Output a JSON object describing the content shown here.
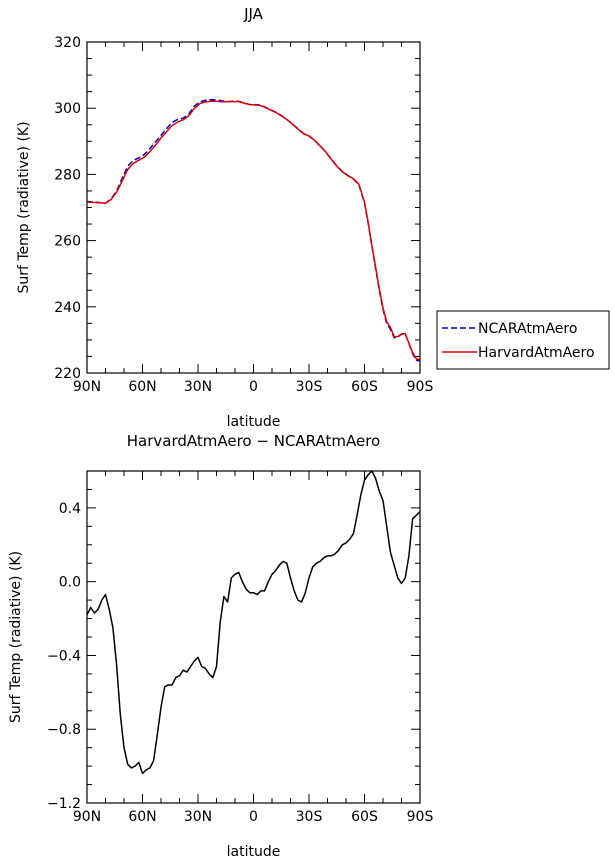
{
  "legend": {
    "items": [
      {
        "label": "NCARAtmAero",
        "color": "#0000cc",
        "style": "dashed"
      },
      {
        "label": "HarvardAtmAero",
        "color": "#dd0000",
        "style": "solid"
      }
    ]
  },
  "chart_data": [
    {
      "type": "line",
      "title": "JJA",
      "xlabel": "latitude",
      "ylabel": "Surf Temp (radiative) (K)",
      "xlim": [
        90,
        -90
      ],
      "ylim": [
        220,
        320
      ],
      "xticks": [
        90,
        60,
        30,
        0,
        -30,
        -60,
        -90
      ],
      "xtick_labels": [
        "90N",
        "60N",
        "30N",
        "0",
        "30S",
        "60S",
        "90S"
      ],
      "yticks": [
        220,
        240,
        260,
        280,
        300,
        320
      ],
      "ytick_labels": [
        "220",
        "240",
        "260",
        "280",
        "300",
        "320"
      ],
      "grid": false,
      "legend": "outside-right",
      "series": [
        {
          "name": "NCARAtmAero",
          "color": "#0000cc",
          "style": "dashed",
          "x": [
            90,
            85,
            80,
            77,
            74,
            71,
            68,
            65,
            62,
            59,
            56,
            53,
            50,
            47,
            44,
            41,
            38,
            35,
            32,
            29,
            26,
            23,
            20,
            17,
            14,
            11,
            8,
            5,
            2,
            0,
            -3,
            -6,
            -9,
            -12,
            -15,
            -18,
            -21,
            -24,
            -27,
            -30,
            -33,
            -36,
            -39,
            -42,
            -45,
            -48,
            -51,
            -54,
            -57,
            -60,
            -62,
            -64,
            -66,
            -68,
            -70,
            -72,
            -74,
            -76,
            -78,
            -80,
            -82,
            -84,
            -86,
            -88,
            -90
          ],
          "y": [
            271.8,
            271.6,
            271.3,
            272.6,
            275.0,
            278.8,
            282.5,
            284.2,
            285.0,
            286.0,
            287.8,
            289.8,
            291.8,
            293.8,
            295.7,
            296.6,
            297.0,
            298.2,
            300.6,
            301.9,
            302.4,
            302.6,
            302.5,
            302.2,
            302.0,
            302.1,
            302.1,
            301.6,
            301.1,
            301.1,
            301.0,
            300.4,
            299.6,
            298.8,
            297.8,
            296.6,
            295.3,
            293.8,
            292.4,
            291.6,
            290.3,
            288.6,
            286.8,
            284.7,
            282.6,
            280.9,
            279.7,
            278.6,
            276.8,
            271.4,
            265.2,
            258.2,
            251.6,
            245.0,
            239.2,
            235.0,
            233.2,
            230.7,
            230.9,
            231.7,
            231.9,
            228.9,
            225.8,
            223.9,
            223.6
          ]
        },
        {
          "name": "HarvardAtmAero",
          "color": "#dd0000",
          "style": "solid",
          "x": [
            90,
            85,
            80,
            77,
            74,
            71,
            68,
            65,
            62,
            59,
            56,
            53,
            50,
            47,
            44,
            41,
            38,
            35,
            32,
            29,
            26,
            23,
            20,
            17,
            14,
            11,
            8,
            5,
            2,
            0,
            -3,
            -6,
            -9,
            -12,
            -15,
            -18,
            -21,
            -24,
            -27,
            -30,
            -33,
            -36,
            -39,
            -42,
            -45,
            -48,
            -51,
            -54,
            -57,
            -60,
            -62,
            -64,
            -66,
            -68,
            -70,
            -72,
            -74,
            -76,
            -78,
            -80,
            -82,
            -84,
            -86,
            -88,
            -90
          ],
          "y": [
            271.6,
            271.5,
            271.3,
            272.4,
            274.6,
            278.0,
            281.5,
            283.3,
            284.3,
            285.2,
            286.9,
            288.8,
            291.0,
            292.9,
            294.8,
            295.8,
            296.5,
            297.7,
            299.9,
            301.4,
            301.9,
            302.1,
            302.1,
            301.9,
            302.0,
            302.0,
            302.0,
            301.5,
            301.1,
            301.0,
            300.9,
            300.3,
            299.5,
            298.7,
            297.7,
            296.6,
            295.2,
            293.7,
            292.3,
            291.6,
            290.3,
            288.6,
            286.8,
            284.6,
            282.5,
            280.8,
            279.6,
            278.7,
            277.0,
            271.6,
            265.5,
            258.5,
            252.0,
            245.5,
            239.7,
            235.5,
            233.8,
            231.0,
            231.0,
            231.8,
            231.9,
            229.0,
            226.2,
            224.3,
            224.0
          ]
        }
      ]
    },
    {
      "type": "line",
      "title": "HarvardAtmAero − NCARAtmAero",
      "xlabel": "latitude",
      "ylabel": "Surf Temp (radiative) (K)",
      "xlim": [
        90,
        -90
      ],
      "ylim": [
        -1.2,
        0.6
      ],
      "xticks": [
        90,
        60,
        30,
        0,
        -30,
        -60,
        -90
      ],
      "xtick_labels": [
        "90N",
        "60N",
        "30N",
        "0",
        "30S",
        "60S",
        "90S"
      ],
      "yticks": [
        -1.2,
        -0.8,
        -0.4,
        0.0,
        0.4
      ],
      "ytick_labels": [
        "−1.2",
        "−0.8",
        "−0.4",
        "0.0",
        "0.4"
      ],
      "grid": false,
      "series": [
        {
          "color": "#000000",
          "style": "solid",
          "x": [
            90,
            88,
            86,
            84,
            82,
            80,
            78,
            76,
            74,
            72,
            70,
            68,
            66,
            64,
            62,
            60,
            58,
            56,
            54,
            52,
            50,
            48,
            46,
            44,
            42,
            40,
            38,
            36,
            34,
            32,
            30,
            28,
            26,
            24,
            22,
            20,
            18,
            16,
            14,
            12,
            10,
            8,
            6,
            4,
            2,
            0,
            -2,
            -4,
            -6,
            -8,
            -10,
            -12,
            -14,
            -16,
            -18,
            -20,
            -22,
            -24,
            -26,
            -28,
            -30,
            -32,
            -34,
            -36,
            -38,
            -40,
            -42,
            -44,
            -46,
            -48,
            -50,
            -52,
            -54,
            -56,
            -58,
            -60,
            -62,
            -64,
            -66,
            -68,
            -70,
            -72,
            -74,
            -76,
            -78,
            -80,
            -82,
            -84,
            -86,
            -88,
            -90
          ],
          "y": [
            -0.18,
            -0.14,
            -0.17,
            -0.15,
            -0.1,
            -0.07,
            -0.15,
            -0.25,
            -0.45,
            -0.72,
            -0.9,
            -0.99,
            -1.01,
            -1.0,
            -0.98,
            -1.04,
            -1.02,
            -1.01,
            -0.97,
            -0.83,
            -0.68,
            -0.57,
            -0.56,
            -0.56,
            -0.52,
            -0.51,
            -0.48,
            -0.49,
            -0.46,
            -0.43,
            -0.41,
            -0.46,
            -0.47,
            -0.5,
            -0.52,
            -0.46,
            -0.22,
            -0.08,
            -0.11,
            0.02,
            0.04,
            0.05,
            0.0,
            -0.04,
            -0.06,
            -0.06,
            -0.07,
            -0.05,
            -0.05,
            0.0,
            0.04,
            0.06,
            0.09,
            0.11,
            0.1,
            0.02,
            -0.05,
            -0.1,
            -0.11,
            -0.06,
            0.02,
            0.08,
            0.1,
            0.11,
            0.13,
            0.14,
            0.14,
            0.15,
            0.17,
            0.2,
            0.21,
            0.23,
            0.26,
            0.36,
            0.47,
            0.55,
            0.58,
            0.6,
            0.56,
            0.49,
            0.44,
            0.3,
            0.16,
            0.09,
            0.02,
            -0.01,
            0.02,
            0.14,
            0.34,
            0.36,
            0.38
          ]
        }
      ]
    }
  ]
}
